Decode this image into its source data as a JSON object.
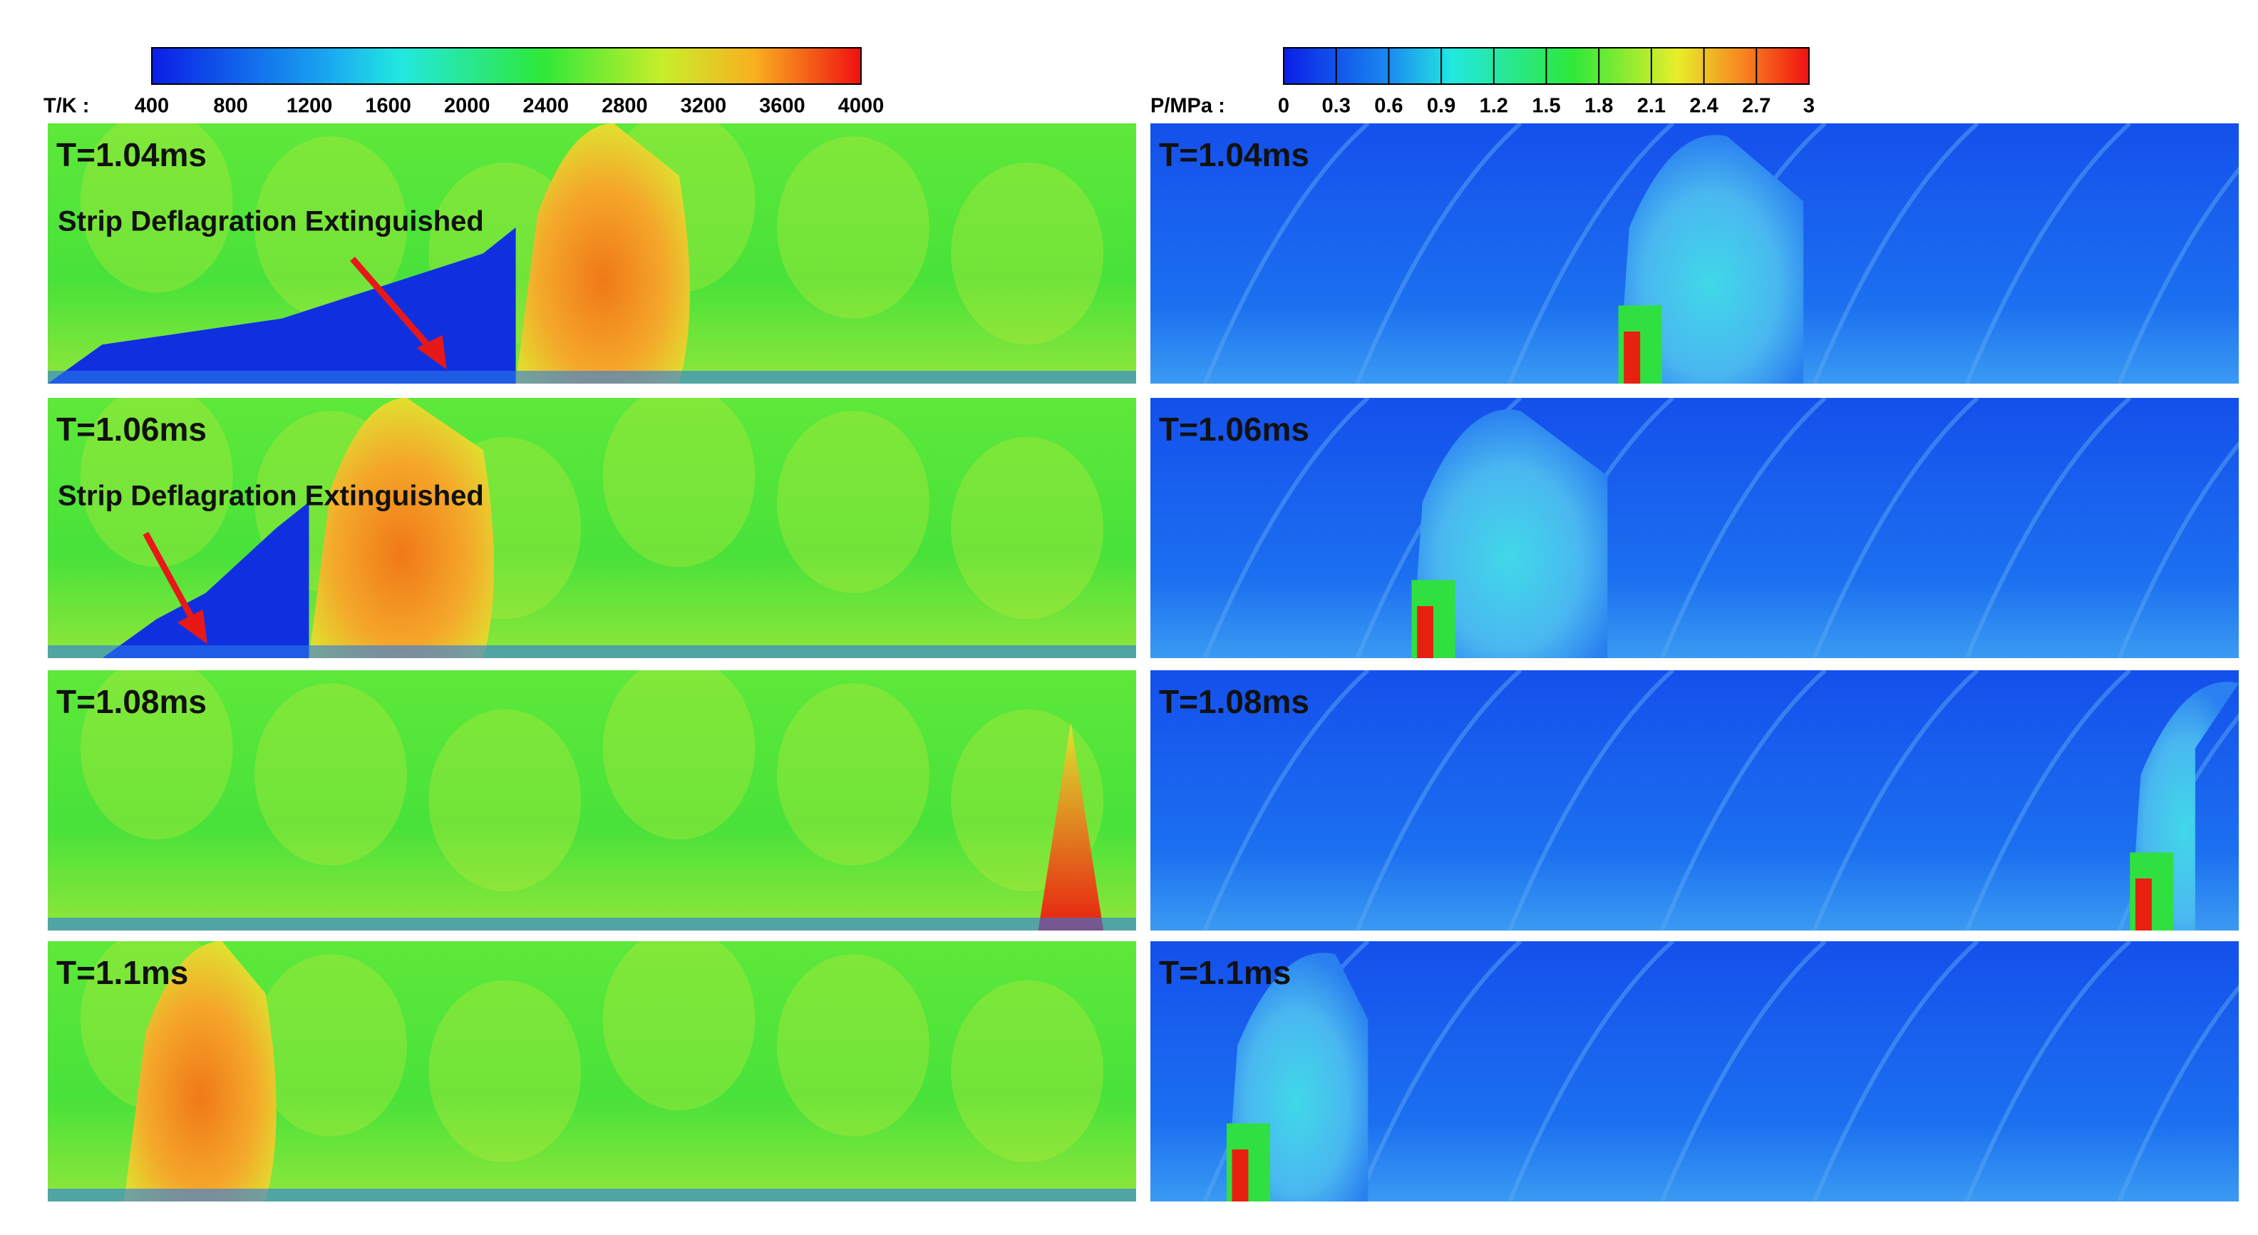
{
  "temperature_colorbar": {
    "label": "T/K :",
    "ticks": [
      400,
      800,
      1200,
      1600,
      2000,
      2400,
      2800,
      3200,
      3600,
      4000
    ]
  },
  "pressure_colorbar": {
    "label": "P/MPa :",
    "ticks": [
      0,
      0.3,
      0.6,
      0.9,
      1.2,
      1.5,
      1.8,
      2.1,
      2.4,
      2.7,
      3
    ]
  },
  "temperature_panels": [
    {
      "time": "T=1.04ms",
      "annotation": "Strip Deflagration Extinguished"
    },
    {
      "time": "T=1.06ms",
      "annotation": "Strip Deflagration Extinguished"
    },
    {
      "time": "T=1.08ms"
    },
    {
      "time": "T=1.1ms"
    }
  ],
  "pressure_panels": [
    {
      "time": "T=1.04ms"
    },
    {
      "time": "T=1.06ms"
    },
    {
      "time": "T=1.08ms"
    },
    {
      "time": "T=1.1ms"
    }
  ]
}
